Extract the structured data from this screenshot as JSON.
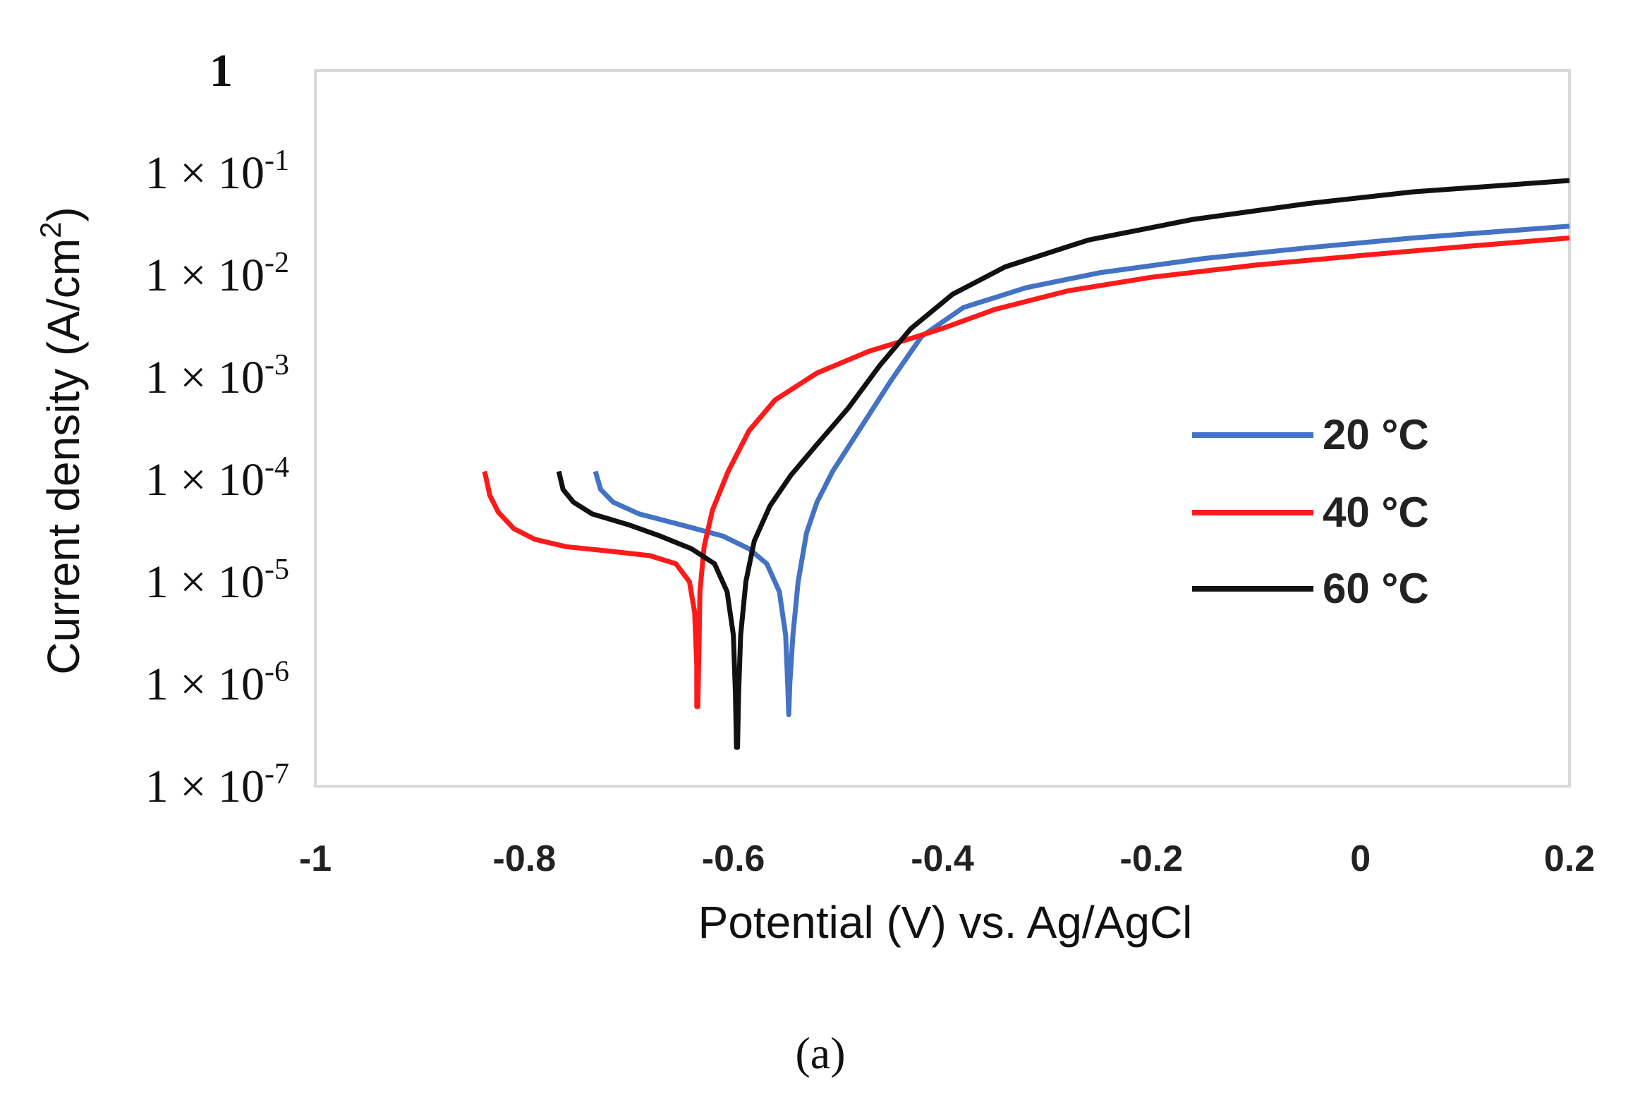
{
  "chart_data": {
    "type": "line",
    "title": "",
    "xlabel": "Potential (V) vs. Ag/AgCl",
    "ylabel": "Current density (A/cm²)",
    "ylabel_base": "Current density (A/cm",
    "ylabel_sup": "2",
    "ylabel_tail": ")",
    "yscale": "log",
    "xlim": [
      -1,
      0.2
    ],
    "ylim": [
      1e-07,
      1
    ],
    "grid": false,
    "legend_position": "right-middle",
    "x_ticks": [
      -1,
      -0.8,
      -0.6,
      -0.4,
      -0.2,
      0,
      0.2
    ],
    "x_tick_labels": [
      "-1",
      "-0.8",
      "-0.6",
      "-0.4",
      "-0.2",
      "0",
      "0.2"
    ],
    "y_ticks": [
      {
        "value": 1,
        "base": "1",
        "exp": ""
      },
      {
        "value": 0.1,
        "base": "1 × 10",
        "exp": "-1"
      },
      {
        "value": 0.01,
        "base": "1 × 10",
        "exp": "-2"
      },
      {
        "value": 0.001,
        "base": "1 × 10",
        "exp": "-3"
      },
      {
        "value": 0.0001,
        "base": "1 × 10",
        "exp": "-4"
      },
      {
        "value": 1e-05,
        "base": "1 × 10",
        "exp": "-5"
      },
      {
        "value": 1e-06,
        "base": "1 × 10",
        "exp": "-6"
      },
      {
        "value": 1e-07,
        "base": "1 × 10",
        "exp": "-7"
      }
    ],
    "caption": "(a)",
    "series": [
      {
        "name": "20 °C",
        "color": "#4472c4",
        "points": [
          [
            -0.732,
            0.00012
          ],
          [
            -0.727,
            8e-05
          ],
          [
            -0.715,
            6e-05
          ],
          [
            -0.69,
            4.6e-05
          ],
          [
            -0.65,
            3.6e-05
          ],
          [
            -0.61,
            2.8e-05
          ],
          [
            -0.585,
            2.1e-05
          ],
          [
            -0.568,
            1.5e-05
          ],
          [
            -0.556,
            8e-06
          ],
          [
            -0.55,
            3e-06
          ],
          [
            -0.548,
            1e-06
          ],
          [
            -0.547,
            5e-07
          ],
          [
            -0.547,
            5e-07
          ],
          [
            -0.546,
            1e-06
          ],
          [
            -0.543,
            3e-06
          ],
          [
            -0.538,
            1e-05
          ],
          [
            -0.53,
            3e-05
          ],
          [
            -0.52,
            6e-05
          ],
          [
            -0.505,
            0.00012
          ],
          [
            -0.48,
            0.0003
          ],
          [
            -0.45,
            0.0009
          ],
          [
            -0.42,
            0.0025
          ],
          [
            -0.38,
            0.0048
          ],
          [
            -0.32,
            0.0075
          ],
          [
            -0.25,
            0.0105
          ],
          [
            -0.15,
            0.0145
          ],
          [
            -0.05,
            0.0185
          ],
          [
            0.05,
            0.023
          ],
          [
            0.2,
            0.03
          ]
        ]
      },
      {
        "name": "40 °C",
        "color": "#ff1a1a",
        "points": [
          [
            -0.838,
            0.00012
          ],
          [
            -0.833,
            7e-05
          ],
          [
            -0.825,
            4.8e-05
          ],
          [
            -0.81,
            3.3e-05
          ],
          [
            -0.79,
            2.6e-05
          ],
          [
            -0.76,
            2.2e-05
          ],
          [
            -0.72,
            2e-05
          ],
          [
            -0.68,
            1.8e-05
          ],
          [
            -0.655,
            1.5e-05
          ],
          [
            -0.642,
            1e-05
          ],
          [
            -0.637,
            5e-06
          ],
          [
            -0.635,
            1.5e-06
          ],
          [
            -0.635,
            6e-07
          ],
          [
            -0.634,
            6e-07
          ],
          [
            -0.633,
            2e-06
          ],
          [
            -0.632,
            8e-06
          ],
          [
            -0.628,
            2.2e-05
          ],
          [
            -0.62,
            5e-05
          ],
          [
            -0.605,
            0.00012
          ],
          [
            -0.585,
            0.0003
          ],
          [
            -0.56,
            0.0006
          ],
          [
            -0.52,
            0.0011
          ],
          [
            -0.47,
            0.0018
          ],
          [
            -0.43,
            0.0024
          ],
          [
            -0.4,
            0.003
          ],
          [
            -0.35,
            0.0046
          ],
          [
            -0.28,
            0.007
          ],
          [
            -0.2,
            0.0095
          ],
          [
            -0.1,
            0.0125
          ],
          [
            0.0,
            0.0155
          ],
          [
            0.1,
            0.019
          ],
          [
            0.2,
            0.023
          ]
        ]
      },
      {
        "name": "60 °C",
        "color": "#111111",
        "points": [
          [
            -0.767,
            0.00012
          ],
          [
            -0.763,
            8e-05
          ],
          [
            -0.753,
            6e-05
          ],
          [
            -0.735,
            4.6e-05
          ],
          [
            -0.7,
            3.6e-05
          ],
          [
            -0.67,
            2.8e-05
          ],
          [
            -0.64,
            2.1e-05
          ],
          [
            -0.618,
            1.5e-05
          ],
          [
            -0.606,
            8e-06
          ],
          [
            -0.6,
            3e-06
          ],
          [
            -0.598,
            8e-07
          ],
          [
            -0.597,
            2.4e-07
          ],
          [
            -0.596,
            2.4e-07
          ],
          [
            -0.595,
            8e-07
          ],
          [
            -0.593,
            3e-06
          ],
          [
            -0.588,
            1e-05
          ],
          [
            -0.58,
            2.5e-05
          ],
          [
            -0.565,
            5.5e-05
          ],
          [
            -0.545,
            0.00011
          ],
          [
            -0.52,
            0.00022
          ],
          [
            -0.49,
            0.0005
          ],
          [
            -0.46,
            0.0013
          ],
          [
            -0.43,
            0.003
          ],
          [
            -0.39,
            0.0065
          ],
          [
            -0.34,
            0.012
          ],
          [
            -0.26,
            0.022
          ],
          [
            -0.16,
            0.035
          ],
          [
            -0.05,
            0.05
          ],
          [
            0.05,
            0.065
          ],
          [
            0.2,
            0.084
          ]
        ]
      }
    ]
  }
}
